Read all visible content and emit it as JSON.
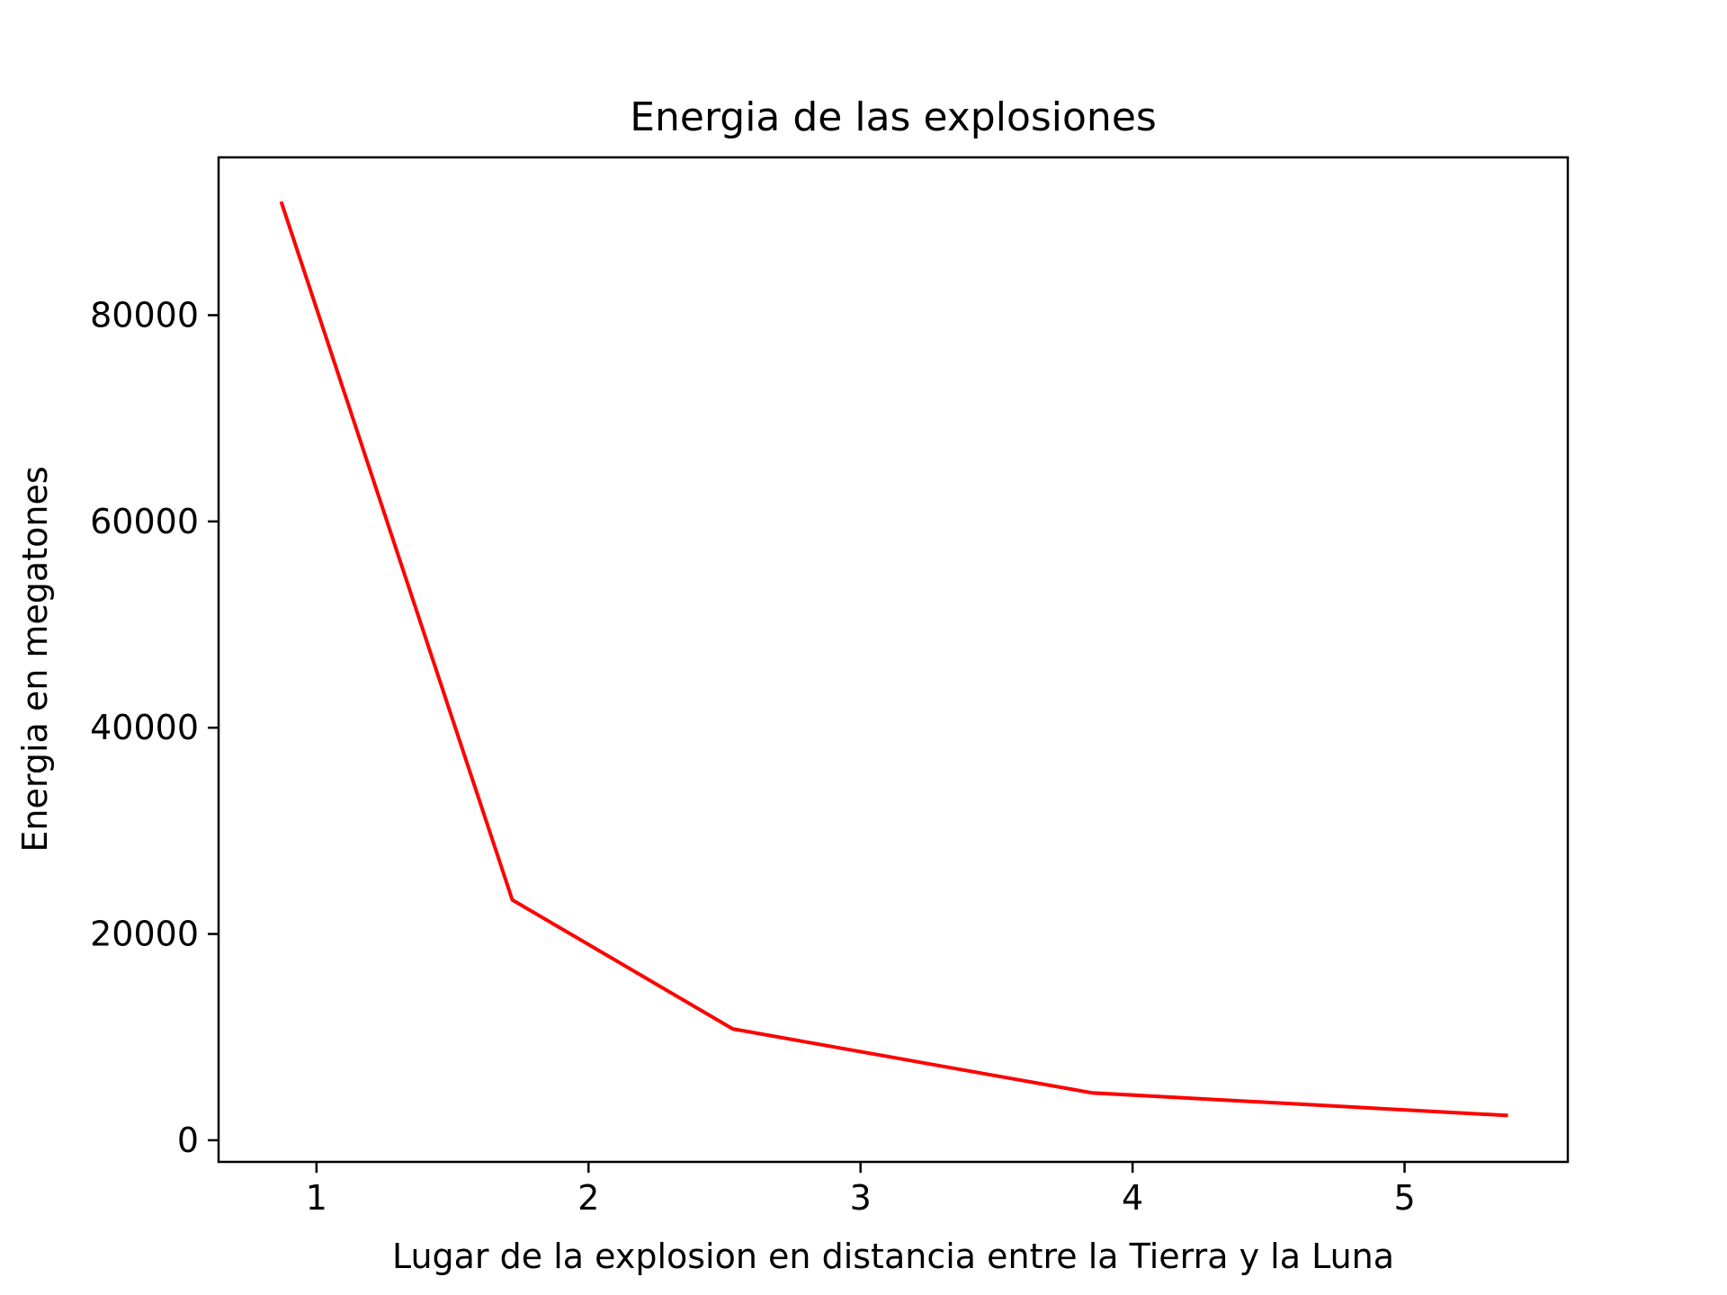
{
  "chart_data": {
    "type": "line",
    "title": "Energia de las explosiones",
    "xlabel": "Lugar de la explosion en distancia entre la Tierra y la Luna",
    "ylabel": "Energia en megatones",
    "xlim": [
      0.64,
      5.6
    ],
    "ylim": [
      -2100,
      95300
    ],
    "x_ticks": [
      1,
      2,
      3,
      4,
      5
    ],
    "y_ticks": [
      0,
      20000,
      40000,
      60000,
      80000
    ],
    "grid": false,
    "legend": "none",
    "series": [
      {
        "color": "#ff0000",
        "x": [
          0.87,
          1.72,
          2.53,
          3.85,
          5.38
        ],
        "y": [
          91000,
          23300,
          10800,
          4600,
          2400
        ]
      }
    ]
  }
}
